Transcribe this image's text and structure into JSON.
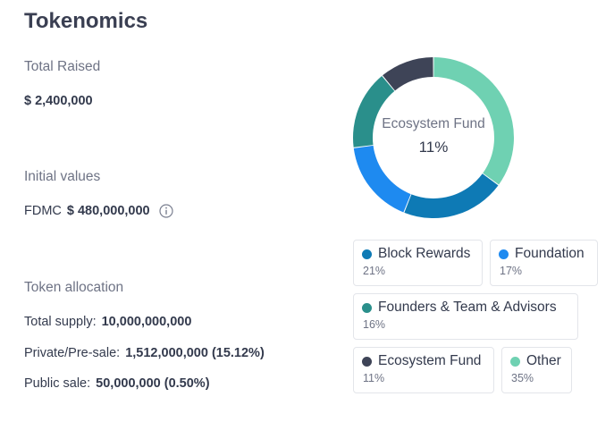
{
  "header": {
    "title": "Tokenomics"
  },
  "raised": {
    "label": "Total Raised",
    "value": "$ 2,400,000"
  },
  "initial": {
    "label": "Initial values",
    "fdmc_label": "FDMC",
    "fdmc_value": "$ 480,000,000",
    "info_icon": "info-icon"
  },
  "allocation": {
    "label": "Token allocation",
    "rows": [
      {
        "label": "Total supply:",
        "value": "10,000,000,000"
      },
      {
        "label": "Private/Pre-sale:",
        "value": "1,512,000,000 (15.12%)"
      },
      {
        "label": "Public sale:",
        "value": "50,000,000 (0.50%)"
      }
    ]
  },
  "donut": {
    "center_name": "Ecosystem Fund",
    "center_pct": "11%"
  },
  "legend": [
    {
      "name": "Block Rewards",
      "pct": "21%",
      "share": 21,
      "color": "#0e7ab5"
    },
    {
      "name": "Foundation",
      "pct": "17%",
      "share": 17,
      "color": "#1e8af0"
    },
    {
      "name": "Founders & Team & Advisors",
      "pct": "16%",
      "share": 16,
      "color": "#2a8f8b"
    },
    {
      "name": "Ecosystem Fund",
      "pct": "11%",
      "share": 11,
      "color": "#3e4457"
    },
    {
      "name": "Other",
      "pct": "35%",
      "share": 35,
      "color": "#6fd1b2"
    }
  ]
}
